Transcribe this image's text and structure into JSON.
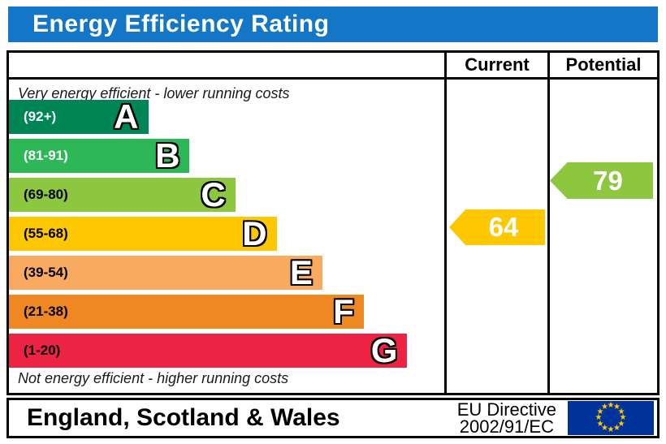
{
  "title": {
    "text": "Energy Efficiency Rating",
    "bg": "#1376c6",
    "fg": "#ffffff"
  },
  "table": {
    "header": {
      "current": "Current",
      "potential": "Potential"
    },
    "top_note": "Very energy efficient - lower running costs",
    "bottom_note": "Not energy efficient - higher running costs",
    "bands": [
      {
        "letter": "A",
        "range": "(92+)",
        "color": "#008556",
        "range_color": "#ffffff",
        "width_pct": 32
      },
      {
        "letter": "B",
        "range": "(81-91)",
        "color": "#2db757",
        "range_color": "#ffffff",
        "width_pct": 41.5
      },
      {
        "letter": "C",
        "range": "(69-80)",
        "color": "#8dc63f",
        "range_color": "#000000",
        "width_pct": 52
      },
      {
        "letter": "D",
        "range": "(55-68)",
        "color": "#fdc702",
        "range_color": "#000000",
        "width_pct": 61.5
      },
      {
        "letter": "E",
        "range": "(39-54)",
        "color": "#f8ab60",
        "range_color": "#000000",
        "width_pct": 72
      },
      {
        "letter": "F",
        "range": "(21-38)",
        "color": "#ef8722",
        "range_color": "#000000",
        "width_pct": 81.5
      },
      {
        "letter": "G",
        "range": "(1-20)",
        "color": "#ec2343",
        "range_color": "#000000",
        "width_pct": 91.5
      }
    ],
    "current": {
      "value": "64",
      "color": "#fdc702",
      "band": "D"
    },
    "potential": {
      "value": "79",
      "color": "#8dc63f",
      "band": "C"
    }
  },
  "footer": {
    "region": "England, Scotland & Wales",
    "directive_line1": "EU Directive",
    "directive_line2": "2002/91/EC",
    "flag": {
      "bg": "#003399",
      "star_color": "#ffcc00",
      "star_count": 12,
      "star_glyph": "★"
    }
  },
  "chart_data": {
    "type": "bar",
    "title": "Energy Efficiency Rating",
    "categories": [
      "A",
      "B",
      "C",
      "D",
      "E",
      "F",
      "G"
    ],
    "band_ranges": [
      "92+",
      "81-91",
      "69-80",
      "55-68",
      "39-54",
      "21-38",
      "1-20"
    ],
    "band_colors": [
      "#008556",
      "#2db757",
      "#8dc63f",
      "#fdc702",
      "#f8ab60",
      "#ef8722",
      "#ec2343"
    ],
    "bar_width_pct": [
      32,
      41.5,
      52,
      61.5,
      72,
      81.5,
      91.5
    ],
    "series": [
      {
        "name": "Current",
        "value": 64,
        "band": "D",
        "color": "#fdc702"
      },
      {
        "name": "Potential",
        "value": 79,
        "band": "C",
        "color": "#8dc63f"
      }
    ],
    "annotations": [
      "Very energy efficient - lower running costs",
      "Not energy efficient - higher running costs"
    ],
    "footer_region": "England, Scotland & Wales",
    "footer_directive": "EU Directive 2002/91/EC",
    "value_scale": [
      1,
      100
    ]
  }
}
